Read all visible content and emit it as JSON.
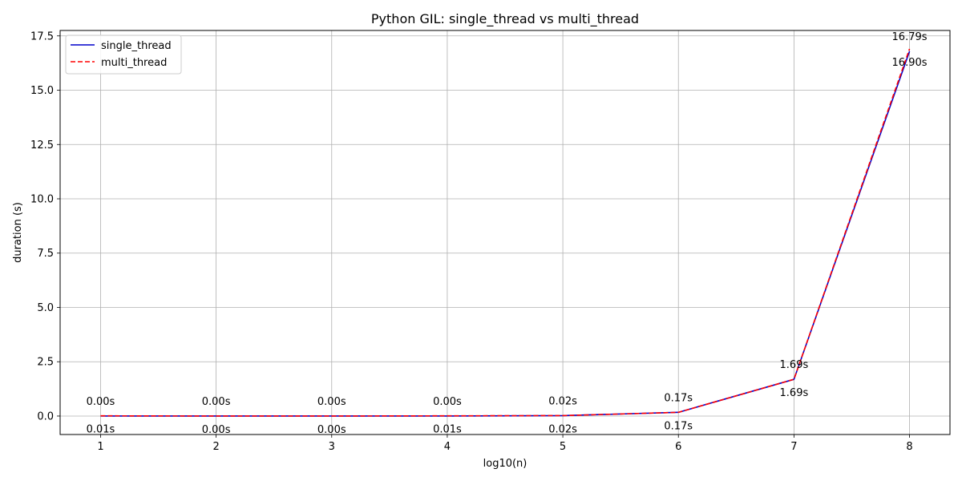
{
  "chart_data": {
    "type": "line",
    "title": "Python GIL: single_thread vs multi_thread",
    "xlabel": "log10(n)",
    "ylabel": "duration (s)",
    "x": [
      1,
      2,
      3,
      4,
      5,
      6,
      7,
      8
    ],
    "xlim": [
      0.65,
      8.35
    ],
    "ylim": [
      -0.85,
      17.75
    ],
    "x_ticks": [
      "1",
      "2",
      "3",
      "4",
      "5",
      "6",
      "7",
      "8"
    ],
    "y_ticks": [
      0,
      2.5,
      5,
      7.5,
      10,
      12.5,
      15,
      17.5
    ],
    "y_tick_labels": [
      "0.0",
      "2.5",
      "5.0",
      "7.5",
      "10.0",
      "12.5",
      "15.0",
      "17.5"
    ],
    "grid": true,
    "legend_position": "top-left",
    "series": [
      {
        "name": "single_thread",
        "color": "#0000cc",
        "style": "solid",
        "values": [
          0.0,
          0.0,
          0.0,
          0.0,
          0.02,
          0.17,
          1.69,
          16.79
        ],
        "labels": [
          "0.00s",
          "0.00s",
          "0.00s",
          "0.00s",
          "0.02s",
          "0.17s",
          "1.69s",
          "16.79s"
        ],
        "label_position": "above"
      },
      {
        "name": "multi_thread",
        "color": "#ff0000",
        "style": "dashed",
        "values": [
          0.01,
          0.0,
          0.0,
          0.01,
          0.02,
          0.17,
          1.69,
          16.9
        ],
        "labels": [
          "0.01s",
          "0.00s",
          "0.00s",
          "0.01s",
          "0.02s",
          "0.17s",
          "1.69s",
          "16.90s"
        ],
        "label_position": "below"
      }
    ]
  }
}
